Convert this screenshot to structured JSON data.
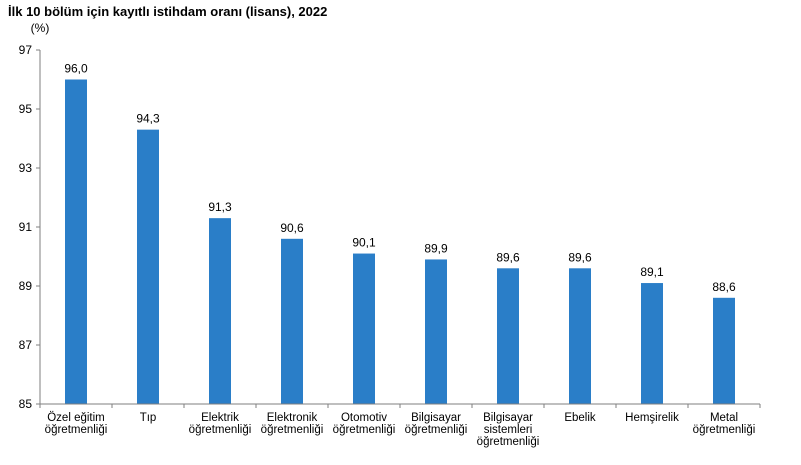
{
  "chart_data": {
    "type": "bar",
    "title": "İlk 10 bölüm için kayıtlı istihdam oranı (lisans), 2022",
    "unit_label": "(%)",
    "xlabel": "",
    "ylabel": "",
    "ylim": [
      85,
      97
    ],
    "yticks": [
      "85",
      "87",
      "89",
      "91",
      "93",
      "95",
      "97"
    ],
    "grid": false,
    "legend": "none",
    "bar_color": "#2A7EC8",
    "categories": [
      [
        "Özel eğitim",
        "öğretmenliği"
      ],
      [
        "Tıp"
      ],
      [
        "Elektrik",
        "öğretmenliği"
      ],
      [
        "Elektronik",
        "öğretmenliği"
      ],
      [
        "Otomotiv",
        "öğretmenliği"
      ],
      [
        "Bilgisayar",
        "öğretmenliği"
      ],
      [
        "Bilgisayar",
        "sistemleri",
        "öğretmenliği"
      ],
      [
        "Ebelik"
      ],
      [
        "Hemşirelik"
      ],
      [
        "Metal",
        "öğretmenliği"
      ]
    ],
    "values": [
      96.0,
      94.3,
      91.3,
      90.6,
      90.1,
      89.9,
      89.6,
      89.6,
      89.1,
      88.6
    ],
    "value_labels": [
      "96,0",
      "94,3",
      "91,3",
      "90,6",
      "90,1",
      "89,9",
      "89,6",
      "89,6",
      "89,1",
      "88,6"
    ]
  }
}
